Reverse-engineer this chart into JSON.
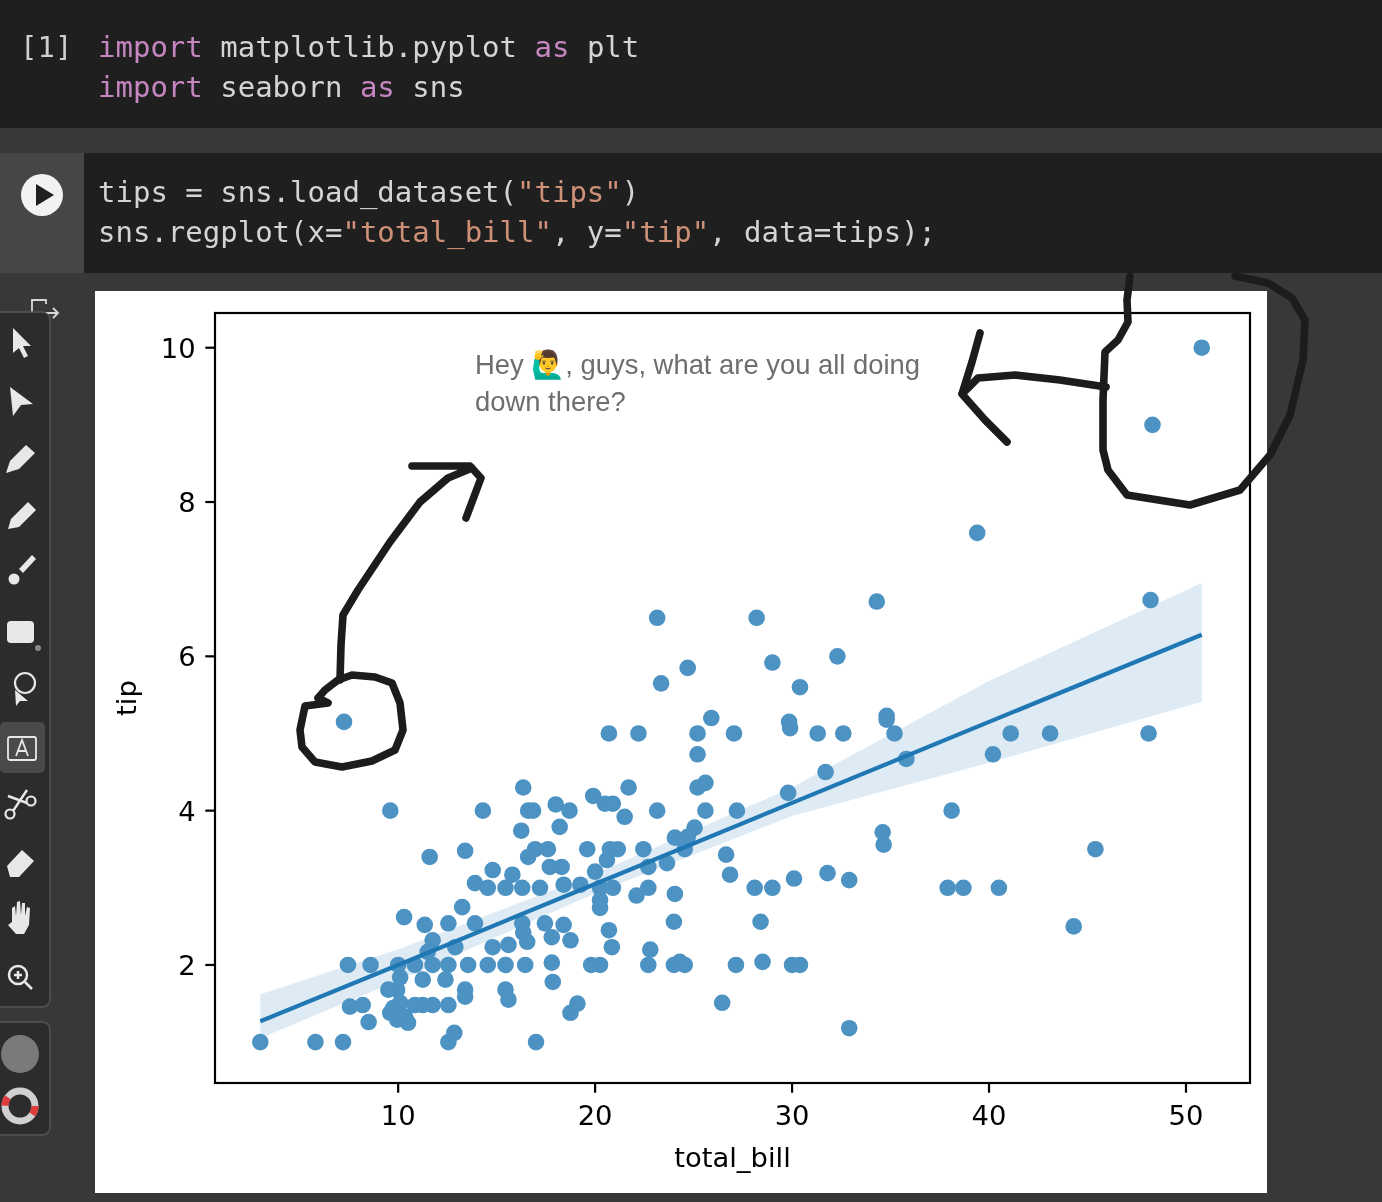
{
  "chart_data": {
    "type": "scatter",
    "xlabel": "total_bill",
    "ylabel": "tip",
    "annotations": [
      "[1]",
      "import matplotlib.pyplot as plt\nimport seaborn as sns",
      "tips = sns.load_dataset(\"tips\")\nsns.regplot(x=\"total_bill\", y=\"tip\", data=tips);",
      "Hey 🙋‍♂️, guys, what are you all doing down there?"
    ],
    "xlim": [
      0.7,
      53.25
    ],
    "ylim": [
      0.47,
      10.45
    ],
    "xticks": [
      10,
      20,
      30,
      40,
      50
    ],
    "yticks": [
      2,
      4,
      6,
      8,
      10
    ],
    "series": [
      {
        "color": "#4c92c3",
        "marker": "circle",
        "x": [
          50.8,
          48.3,
          39.4,
          48.2,
          34.3,
          23.15,
          28.2,
          32.3,
          24.7,
          23.35,
          29.0,
          30.4,
          7.25,
          25.9,
          29.85,
          29.9,
          34.8,
          34.8,
          35.2,
          20.7,
          22.2,
          25.2,
          27.05,
          31.3,
          32.6,
          41.1,
          43.1,
          48.1,
          35.8,
          40.2,
          25.2,
          31.7,
          25.2,
          25.6,
          21.7,
          16.35,
          9.6,
          14.3,
          16.6,
          16.85,
          18.0,
          18.7,
          19.9,
          20.5,
          20.9,
          21.5,
          23.15,
          25.6,
          27.2,
          29.8,
          38.1,
          34.6,
          34.65,
          45.4,
          26.65,
          26.85,
          28.1,
          29.0,
          30.1,
          31.8,
          32.9,
          37.9,
          38.7,
          40.5,
          24.05,
          22.1,
          22.7,
          28.4,
          24.0,
          44.3,
          22.7,
          22.8,
          24.0,
          24.3,
          24.55,
          27.15,
          28.5,
          30.0,
          30.4,
          26.45,
          32.9,
          20.25,
          19.8,
          20.7,
          20.85,
          18.75,
          19.1,
          18.75,
          18.4,
          19.6,
          20.75,
          21.15,
          22.45,
          20.6,
          20.0,
          23.65,
          24.05,
          24.55,
          25.05,
          24.7,
          18.4,
          19.25,
          20.25,
          20.9,
          20.25,
          20.25,
          22.7,
          16.25,
          18.2,
          11.6,
          13.4,
          10.3,
          11.35,
          13.25,
          12.55,
          13.9,
          14.8,
          15.8,
          16.95,
          17.6,
          13.9,
          14.55,
          15.45,
          16.3,
          17.2,
          16.6,
          17.7,
          18.3,
          16.3,
          16.35,
          17.45,
          17.8,
          16.55,
          15.6,
          14.8,
          11.75,
          12.9,
          11.5,
          7.45,
          8.6,
          10.0,
          10.85,
          11.75,
          12.55,
          13.55,
          14.55,
          15.45,
          16.45,
          10.1,
          9.95,
          9.5,
          11.25,
          12.4,
          13.4,
          13.4,
          15.45,
          15.6,
          17.8,
          17.85,
          7.55,
          8.2,
          8.5,
          10.1,
          9.6,
          10.85,
          11.25,
          11.75,
          12.55,
          10.35,
          9.95,
          10.5,
          9.75,
          3.0,
          5.8,
          7.2,
          12.55,
          12.85,
          17.0
        ],
        "values": [
          10.0,
          9.0,
          7.6,
          6.73,
          6.71,
          6.5,
          6.5,
          6.0,
          5.85,
          5.65,
          5.92,
          5.6,
          5.15,
          5.2,
          5.15,
          5.07,
          5.23,
          5.18,
          5.0,
          5.0,
          5.0,
          5.0,
          5.0,
          5.0,
          5.0,
          5.0,
          5.0,
          5.0,
          4.67,
          4.73,
          4.73,
          4.5,
          4.3,
          4.36,
          4.3,
          4.3,
          4.0,
          4.0,
          4.0,
          4.0,
          4.08,
          4.0,
          4.19,
          4.09,
          4.09,
          3.92,
          4.0,
          4.0,
          4.0,
          4.23,
          4.0,
          3.72,
          3.56,
          3.5,
          3.43,
          3.17,
          3.0,
          3.0,
          3.12,
          3.19,
          3.1,
          3.0,
          3.0,
          3.0,
          2.92,
          2.9,
          3.0,
          2.56,
          2.56,
          2.5,
          2.0,
          2.2,
          2.0,
          2.04,
          2.0,
          2.0,
          2.04,
          2.0,
          2.0,
          1.51,
          1.18,
          2.0,
          2.0,
          2.45,
          2.23,
          1.38,
          1.5,
          2.32,
          2.52,
          3.5,
          3.5,
          3.5,
          3.5,
          3.36,
          3.21,
          3.32,
          3.65,
          3.5,
          3.78,
          3.66,
          3.04,
          3.04,
          3.0,
          3.0,
          2.84,
          2.74,
          3.27,
          3.74,
          3.79,
          3.4,
          3.48,
          2.62,
          2.52,
          2.75,
          2.54,
          2.54,
          3.23,
          3.17,
          3.5,
          3.5,
          3.06,
          3.0,
          3.0,
          3.0,
          3.0,
          3.4,
          3.27,
          3.27,
          2.54,
          2.42,
          2.54,
          2.36,
          2.3,
          2.26,
          2.23,
          2.32,
          2.23,
          2.17,
          2.0,
          2.0,
          2.0,
          2.0,
          2.0,
          2.0,
          2.0,
          2.0,
          2.0,
          2.0,
          1.84,
          1.68,
          1.68,
          1.81,
          1.81,
          1.68,
          1.59,
          1.68,
          1.55,
          2.03,
          1.78,
          1.46,
          1.48,
          1.26,
          1.51,
          1.38,
          1.48,
          1.48,
          1.48,
          1.48,
          1.33,
          1.29,
          1.25,
          1.44,
          1.0,
          1.0,
          1.0,
          1.0,
          1.12,
          1.0
        ]
      },
      {
        "type": "line",
        "color": "#1f77b4",
        "x": [
          3.0,
          10,
          20,
          30,
          40,
          50.8
        ],
        "values": [
          1.27,
          2.0,
          3.05,
          4.1,
          5.15,
          6.28
        ],
        "lower": [
          1.05,
          1.8,
          2.93,
          3.93,
          4.62,
          5.41
        ],
        "upper": [
          1.62,
          2.2,
          3.18,
          4.3,
          5.68,
          6.95
        ]
      }
    ]
  }
}
